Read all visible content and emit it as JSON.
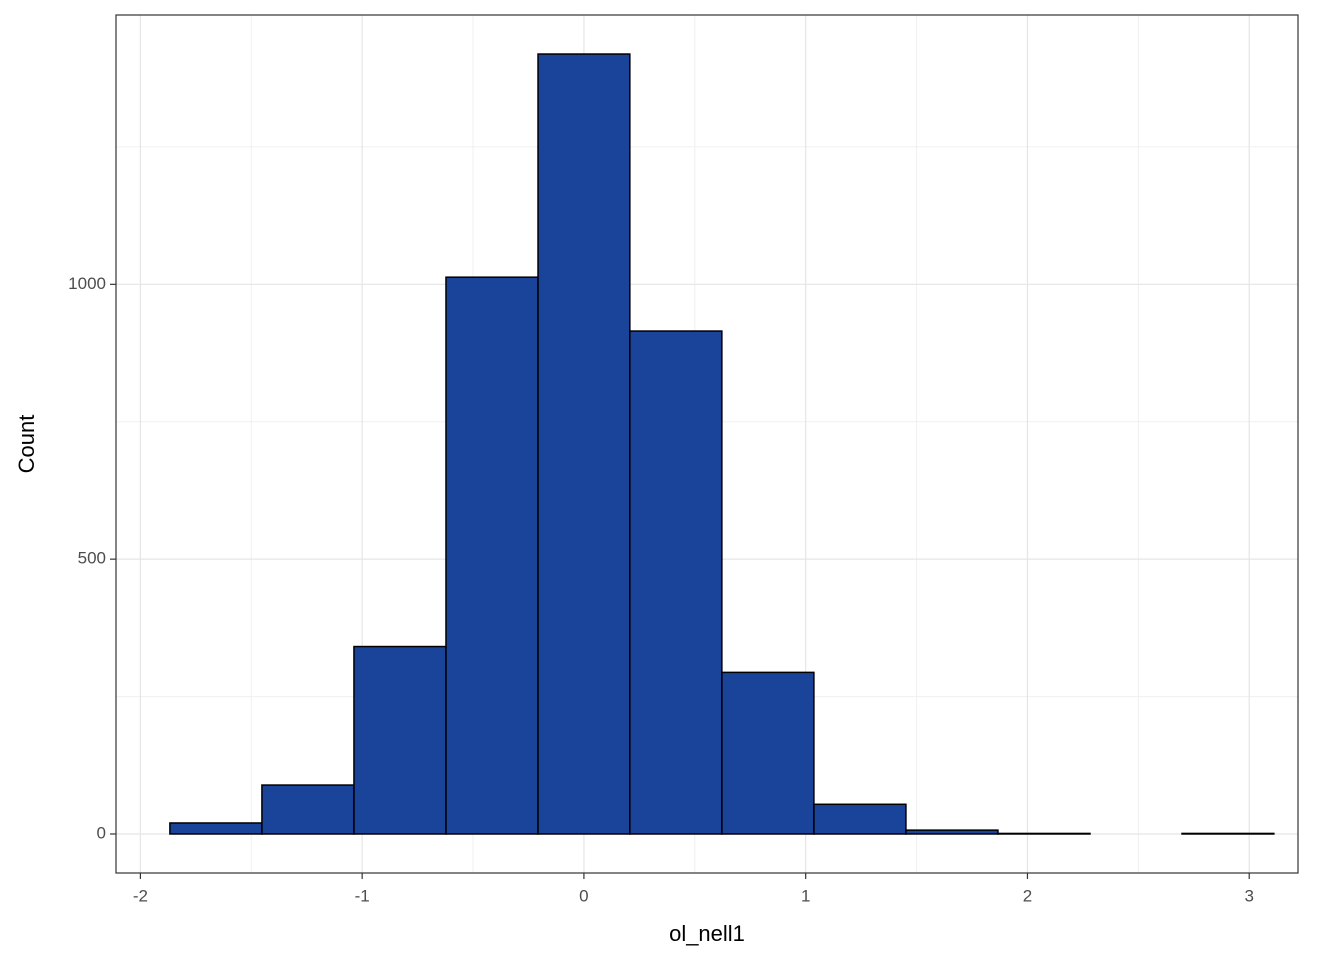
{
  "chart_data": {
    "type": "histogram",
    "x_label": "ol_nell1",
    "y_label": "Count",
    "bins": [
      -1.867,
      -1.452,
      -1.037,
      -0.622,
      -0.207,
      0.207,
      0.622,
      1.037,
      1.452,
      1.867,
      2.282,
      2.697,
      3.111
    ],
    "values": [
      20,
      89,
      341,
      1013,
      1419,
      915,
      294,
      54,
      7,
      1,
      0,
      1
    ],
    "color": "#1a4499",
    "edge_color": "#000000",
    "xlim": [
      -2.11,
      3.22
    ],
    "xticks": [
      -2,
      -1,
      0,
      1,
      2,
      3
    ],
    "minor_xticks": [
      -1.5,
      -0.5,
      0.5,
      1.5,
      2.5
    ],
    "ylim": [
      -71,
      1490
    ],
    "yticks": [
      0,
      500,
      1000
    ],
    "minor_yticks": [
      250,
      750,
      1250
    ],
    "grid": true
  }
}
